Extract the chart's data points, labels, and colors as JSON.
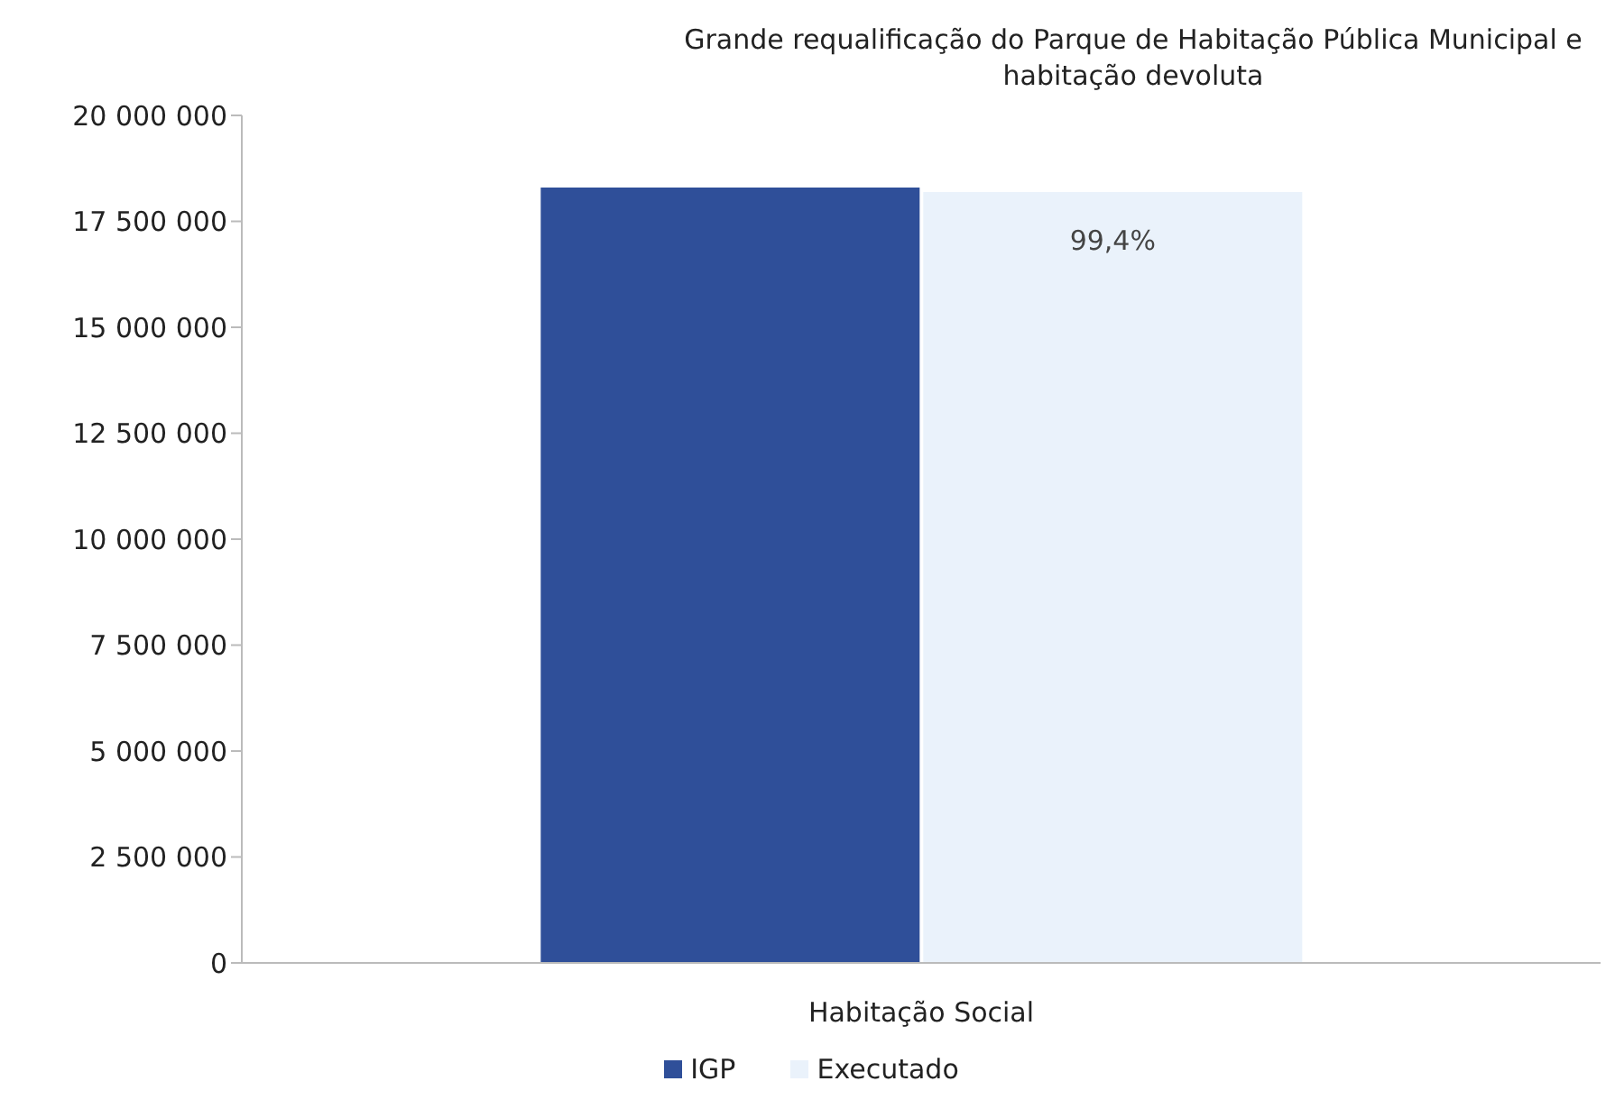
{
  "chart_data": {
    "type": "bar",
    "title": "Grande requalificação do Parque de Habitação Pública Municipal e habitação devoluta",
    "categories": [
      "Habitação Social"
    ],
    "series": [
      {
        "name": "IGP",
        "color": "#2f4f99",
        "values": [
          18300000
        ]
      },
      {
        "name": "Executado",
        "color": "#eaf2fb",
        "values": [
          18190000
        ]
      }
    ],
    "annotations": [
      "99,4%"
    ],
    "ylim": [
      0,
      20000000
    ],
    "yticks": [
      0,
      2500000,
      5000000,
      7500000,
      10000000,
      12500000,
      15000000,
      17500000,
      20000000
    ],
    "grid": false,
    "legend": "bottom"
  }
}
